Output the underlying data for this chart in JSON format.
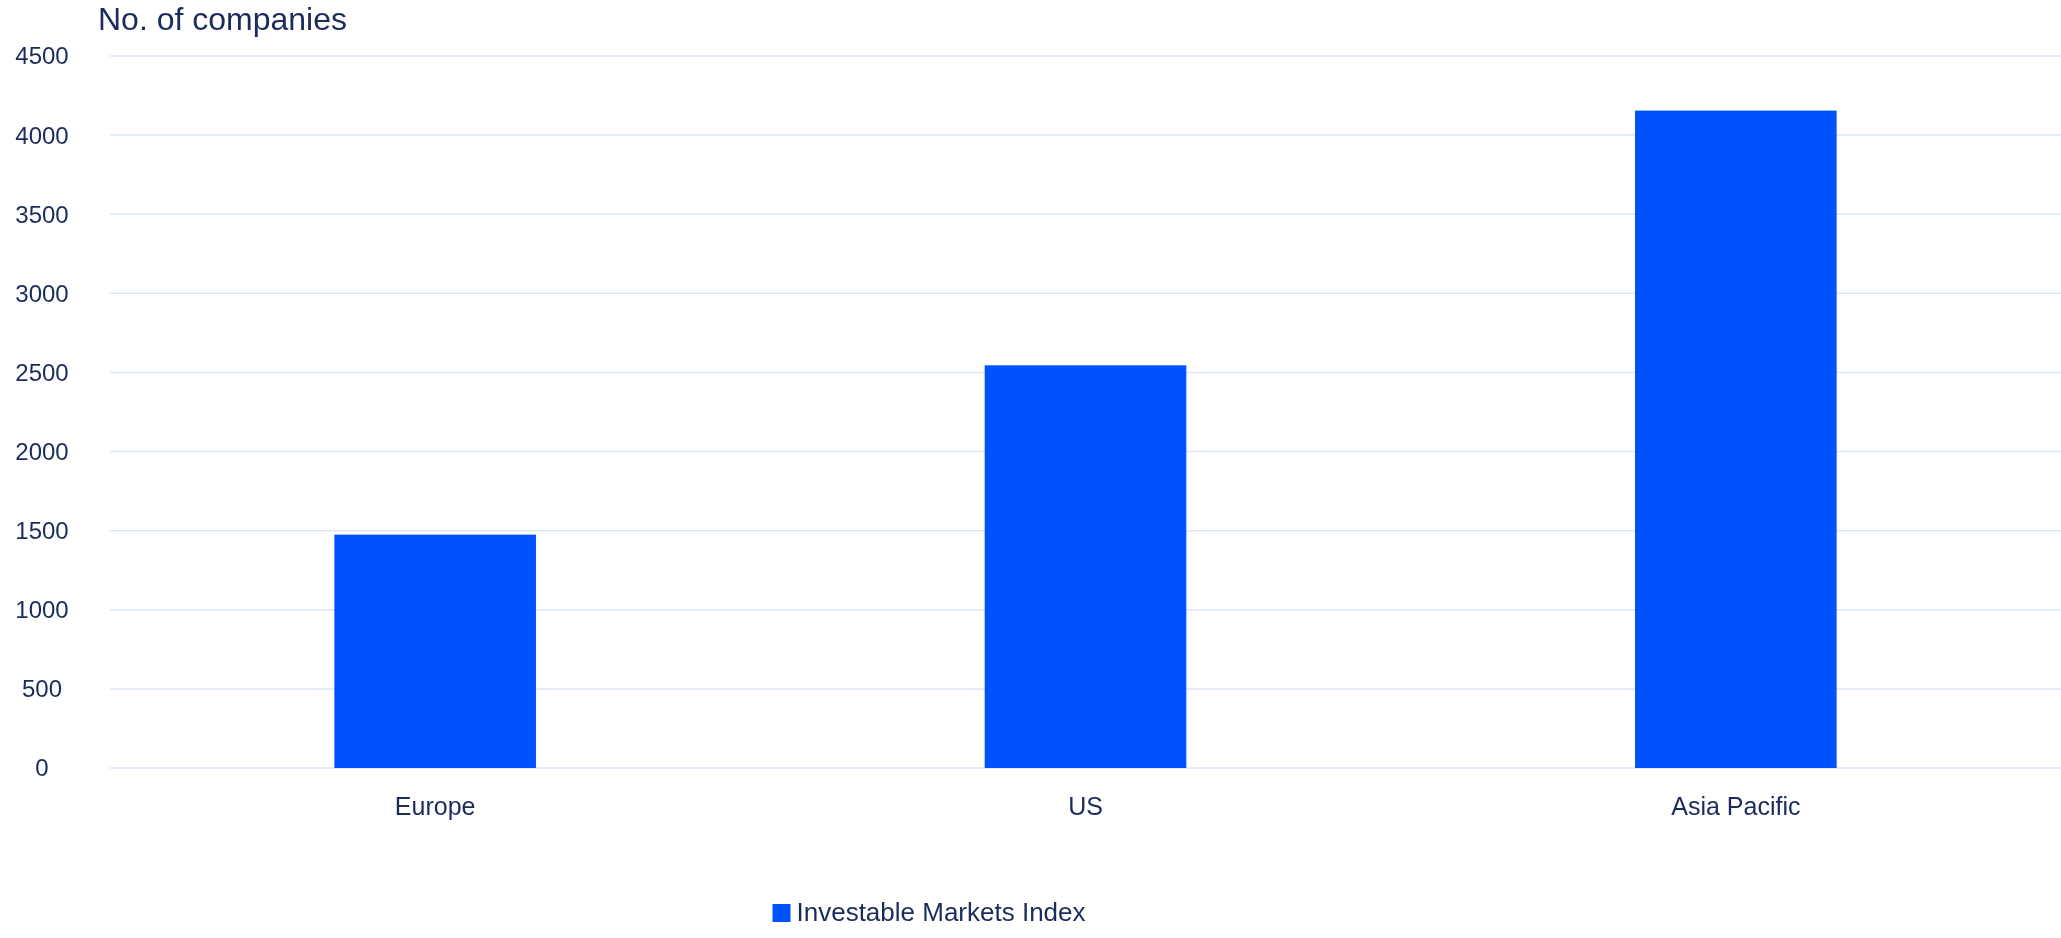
{
  "chart_data": {
    "type": "bar",
    "ylabel": "No. of companies",
    "categories": [
      "Europe",
      "US",
      "Asia Pacific"
    ],
    "series": [
      {
        "name": "Investable Markets Index",
        "color": "#0052ff",
        "values": [
          1475,
          2545,
          4155
        ]
      }
    ],
    "ylim": [
      0,
      4500
    ],
    "yticks": [
      0,
      500,
      1000,
      1500,
      2000,
      2500,
      3000,
      3500,
      4000,
      4500
    ],
    "grid": "y",
    "legend": "bottom"
  }
}
